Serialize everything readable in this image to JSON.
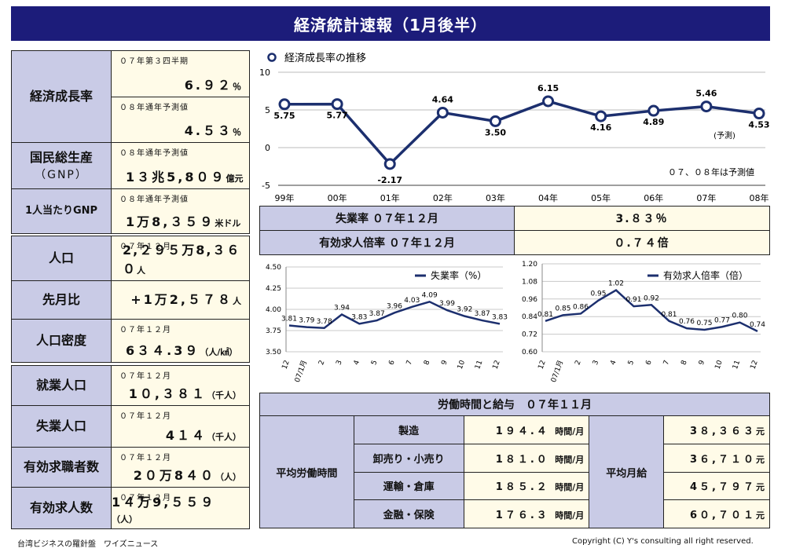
{
  "title": "経済統計速報（1月後半）",
  "left": [
    {
      "label": "経済成長率",
      "rows": [
        {
          "sub": "０７年第３四半期",
          "value": "6.９２",
          "unit": "％"
        },
        {
          "sub": "０８年通年予測値",
          "value": "4.５３",
          "unit": "％"
        }
      ]
    },
    {
      "label": "国民総生産",
      "label2": "（GNP）",
      "sub": "０８年通年予測値",
      "value": "1３兆5,8０９",
      "unit": "億元"
    },
    {
      "label": "1人当たりGNP",
      "sub": "０８年通年予測値",
      "value": "1万8,３５９",
      "unit": "米ドル"
    },
    {
      "label": "人口",
      "sub": "０７年１２月",
      "value": "2,２９５万8,３６０",
      "unit": "人"
    },
    {
      "label": "先月比",
      "value": "+1万2,５７８",
      "unit": "人"
    },
    {
      "label": "人口密度",
      "sub": "０７年１２月",
      "value": "6３４.3９",
      "unit": "（人/㎢）"
    },
    {
      "label": "就業人口",
      "sub": "０７年１２月",
      "value": "1０,３８１",
      "unit": "（千人）"
    },
    {
      "label": "失業人口",
      "sub": "０７年１２月",
      "value": "4１４",
      "unit": "（千人）"
    },
    {
      "label": "有効求職者数",
      "sub": "０７年１２月",
      "value": "2０万8４０",
      "unit": "（人）"
    },
    {
      "label": "有効求人数",
      "sub": "０７年１２月",
      "value": "1４万9,５５９",
      "unit": "（人）"
    }
  ],
  "chart_data": [
    {
      "type": "line",
      "title": "経済成長率の推移",
      "x": [
        "99年",
        "00年",
        "01年",
        "02年",
        "03年",
        "04年",
        "05年",
        "06年",
        "07年",
        "08年"
      ],
      "values": [
        5.75,
        5.77,
        -2.17,
        4.64,
        3.5,
        6.15,
        4.16,
        4.89,
        5.46,
        4.53
      ],
      "labels": [
        "5.75",
        "5.77",
        "-2.17",
        "4.64",
        "3.50",
        "6.15",
        "4.16",
        "4.89",
        "5.46",
        "4.53"
      ],
      "yticks": [
        "10",
        "5",
        "0",
        "-5"
      ],
      "ylim": [
        -5,
        10
      ],
      "annotations": [
        "(予測)",
        "０７、０８年は予測値"
      ],
      "color": "#1c2f6e",
      "marker_fill": "#ffffff"
    },
    {
      "type": "line",
      "legend": "失業率（%）",
      "x": [
        "12",
        "07/1月",
        "2",
        "3",
        "4",
        "5",
        "6",
        "7",
        "8",
        "9",
        "10",
        "11",
        "12"
      ],
      "values": [
        3.81,
        3.79,
        3.78,
        3.94,
        3.83,
        3.87,
        3.96,
        4.03,
        4.09,
        3.99,
        3.92,
        3.87,
        3.83
      ],
      "labels": [
        "3.81",
        "3.79",
        "3.78",
        "3.94",
        "3.83",
        "3.87",
        "3.96",
        "4.03",
        "4.09",
        "3.99",
        "3.92",
        "3.87",
        "3.83"
      ],
      "yticks": [
        "4.50",
        "4.25",
        "4.00",
        "3.75",
        "3.50"
      ],
      "ylim": [
        3.5,
        4.5
      ],
      "color": "#1c2f6e"
    },
    {
      "type": "line",
      "legend": "有効求人倍率（倍）",
      "x": [
        "12",
        "07/1月",
        "2",
        "3",
        "4",
        "5",
        "6",
        "7",
        "8",
        "9",
        "10",
        "11",
        "12"
      ],
      "values": [
        0.81,
        0.85,
        0.86,
        0.95,
        1.02,
        0.91,
        0.92,
        0.81,
        0.76,
        0.75,
        0.77,
        0.8,
        0.74
      ],
      "labels": [
        "0.81",
        "0.85",
        "0.86",
        "0.95",
        "1.02",
        "0.91",
        "0.92",
        "0.81",
        "0.76",
        "0.75",
        "0.77",
        "0.80",
        "0.74"
      ],
      "yticks": [
        "1.20",
        "1.08",
        "0.96",
        "0.84",
        "0.72",
        "0.60"
      ],
      "ylim": [
        0.6,
        1.2
      ],
      "color": "#1c2f6e"
    }
  ],
  "tiles": [
    {
      "label": "失業率 ０７年１２月",
      "value": "3.８３％"
    },
    {
      "label": "有効求人倍率 ０７年１２月",
      "value": "０.７４倍"
    }
  ],
  "wages": {
    "title": "労働時間と給与　０７年１１月",
    "hours_label": "平均労働時間",
    "pay_label": "平均月給",
    "rows": [
      {
        "industry": "製造",
        "hours": "1９４.４",
        "hours_unit": "時間/月",
        "pay": "3８,３６３",
        "pay_unit": "元"
      },
      {
        "industry": "卸売り・小売り",
        "hours": "1８１.０",
        "hours_unit": "時間/月",
        "pay": "3６,７１０",
        "pay_unit": "元"
      },
      {
        "industry": "運輸・倉庫",
        "hours": "1８５.２",
        "hours_unit": "時間/月",
        "pay": "4５,７９７",
        "pay_unit": "元"
      },
      {
        "industry": "金融・保険",
        "hours": "1７６.３",
        "hours_unit": "時間/月",
        "pay": "6０,７０１",
        "pay_unit": "元"
      }
    ]
  },
  "footer": {
    "left": "台湾ビジネスの羅針盤　ワイズニュース",
    "right": "Copyright (C) Y's consulting all right reserved."
  }
}
